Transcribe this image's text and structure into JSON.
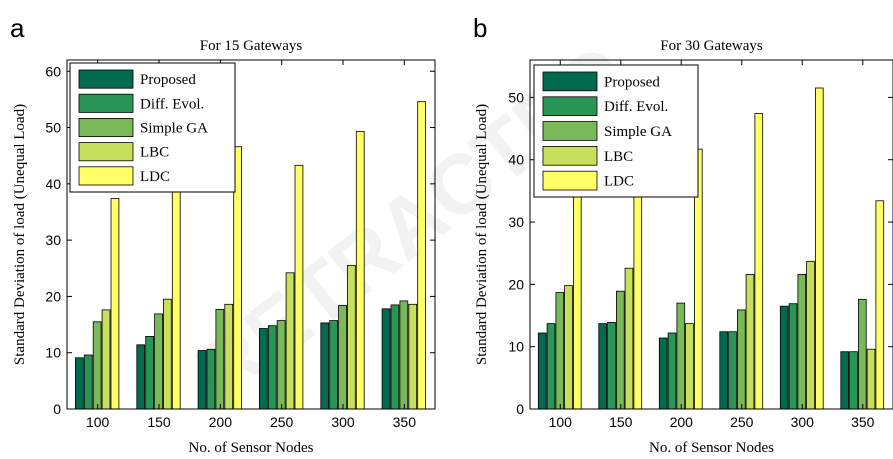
{
  "figure": {
    "watermark": "RETRACTED"
  },
  "chart_data": [
    {
      "panel_label": "a",
      "type": "bar",
      "title": "For 15 Gateways",
      "xlabel": "No. of Sensor Nodes",
      "ylabel": "Standard Deviation of load (Unequal Load)",
      "categories": [
        "100",
        "150",
        "200",
        "250",
        "300",
        "350"
      ],
      "ylim": [
        0,
        62
      ],
      "yticks": [
        0,
        10,
        20,
        30,
        40,
        50,
        60
      ],
      "legend_position": "top-left",
      "grid": false,
      "series": [
        {
          "name": "Proposed",
          "color": "#006b4e",
          "values": [
            9.1,
            11.4,
            10.4,
            14.3,
            15.3,
            17.8
          ]
        },
        {
          "name": "Diff. Evol.",
          "color": "#2a9656",
          "values": [
            9.6,
            12.9,
            10.6,
            14.8,
            15.7,
            18.5
          ]
        },
        {
          "name": "Simple GA",
          "color": "#79b95a",
          "values": [
            15.5,
            16.9,
            17.7,
            15.7,
            18.4,
            19.2
          ]
        },
        {
          "name": "LBC",
          "color": "#c8df5c",
          "values": [
            17.6,
            19.5,
            18.6,
            24.2,
            25.5,
            18.6
          ]
        },
        {
          "name": "LDC",
          "color": "#ffff66",
          "values": [
            37.4,
            40.0,
            46.6,
            43.3,
            49.3,
            54.6
          ]
        }
      ]
    },
    {
      "panel_label": "b",
      "type": "bar",
      "title": "For 30 Gateways",
      "xlabel": "No. of Sensor Nodes",
      "ylabel": "Standard Deviation of load (Unequal Load)",
      "categories": [
        "100",
        "150",
        "200",
        "250",
        "300",
        "350"
      ],
      "ylim": [
        0,
        56
      ],
      "yticks": [
        0,
        10,
        20,
        30,
        40,
        50
      ],
      "legend_position": "top-left",
      "grid": false,
      "series": [
        {
          "name": "Proposed",
          "color": "#006b4e",
          "values": [
            12.2,
            13.7,
            11.4,
            12.4,
            16.5,
            9.2
          ]
        },
        {
          "name": "Diff. Evol.",
          "color": "#2a9656",
          "values": [
            13.7,
            13.9,
            12.2,
            12.4,
            16.9,
            9.2
          ]
        },
        {
          "name": "Simple GA",
          "color": "#79b95a",
          "values": [
            18.7,
            18.9,
            17.0,
            15.9,
            21.6,
            17.6
          ]
        },
        {
          "name": "LBC",
          "color": "#c8df5c",
          "values": [
            19.8,
            22.6,
            13.7,
            21.6,
            23.7,
            9.6
          ]
        },
        {
          "name": "LDC",
          "color": "#ffff66",
          "values": [
            34.5,
            34.0,
            41.7,
            47.4,
            51.5,
            33.4
          ]
        }
      ]
    }
  ]
}
